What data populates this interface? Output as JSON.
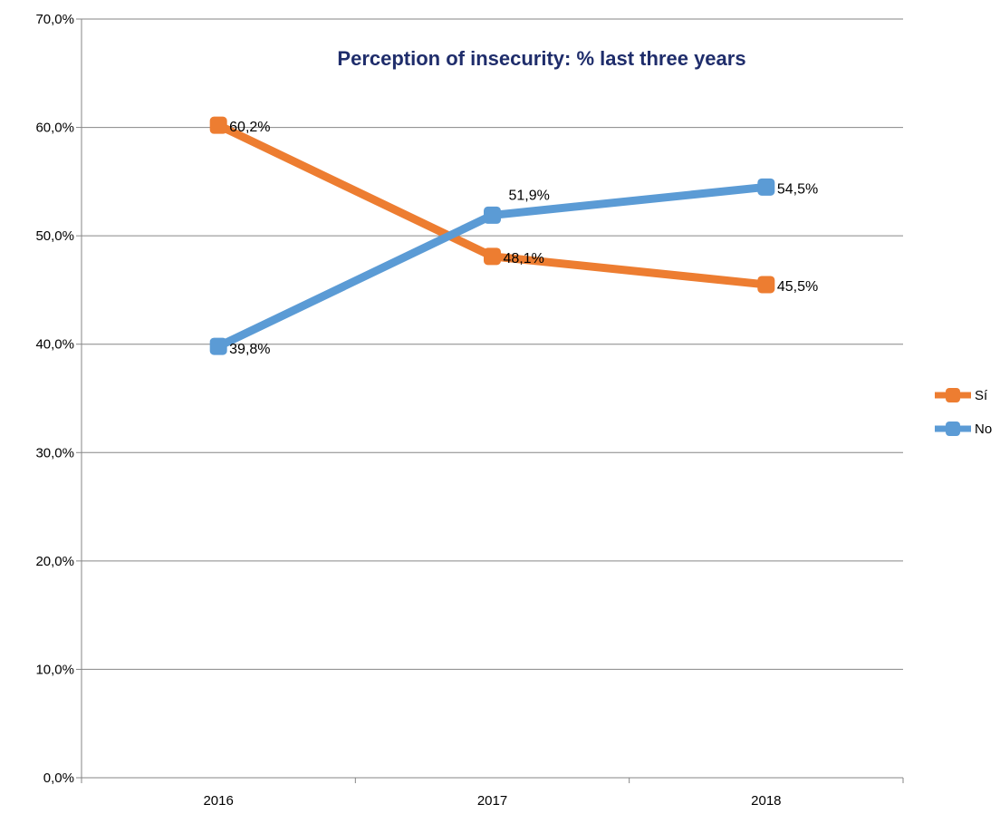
{
  "chart_data": {
    "type": "line",
    "title": "Perception of insecurity: % last three years",
    "categories": [
      "2016",
      "2017",
      "2018"
    ],
    "ylim": [
      0,
      70
    ],
    "yticks": [
      0,
      10,
      20,
      30,
      40,
      50,
      60,
      70
    ],
    "ytick_labels": [
      "0,0%",
      "10,0%",
      "20,0%",
      "30,0%",
      "40,0%",
      "50,0%",
      "60,0%",
      "70,0%"
    ],
    "grid": true,
    "legend_position": "right",
    "series": [
      {
        "name": "Sí",
        "color": "#ED7D31",
        "values": [
          60.2,
          48.1,
          45.5
        ],
        "labels": [
          "60,2%",
          "48,1%",
          "45,5%"
        ]
      },
      {
        "name": "No",
        "color": "#5B9BD5",
        "values": [
          39.8,
          51.9,
          54.5
        ],
        "labels": [
          "39,8%",
          "51,9%",
          "54,5%"
        ]
      }
    ],
    "colors": {
      "title": "#1F2D6B",
      "grid": "#868686",
      "axis": "#868686"
    }
  }
}
